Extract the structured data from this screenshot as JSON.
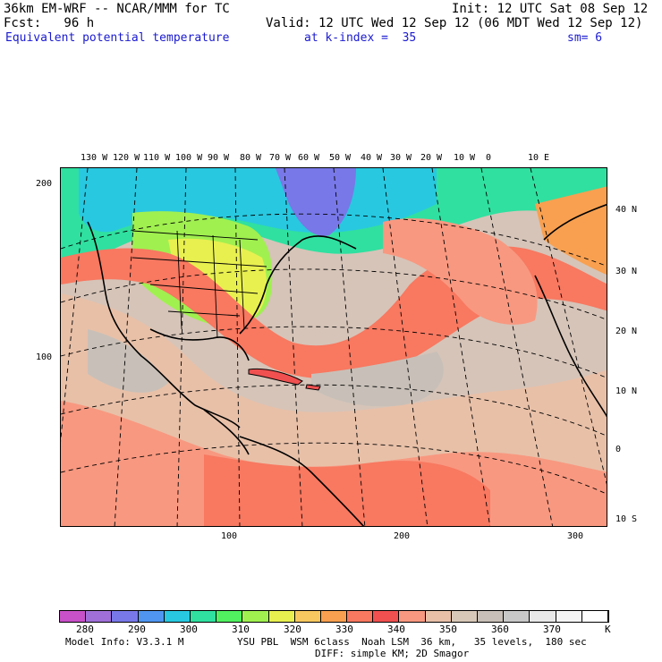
{
  "header": {
    "model": "36km EM-WRF -- NCAR/MMM for TC",
    "init": "Init: 12 UTC Sat 08 Sep 12",
    "fcst": "Fcst:   96 h",
    "valid": "Valid: 12 UTC Wed 12 Sep 12 (06 MDT Wed 12 Sep 12)",
    "field": "Equivalent potential temperature",
    "level": "at k-index =  35",
    "smooth": "sm= 6"
  },
  "map": {
    "lon_labels": [
      "130 W",
      "120 W",
      "110 W",
      "100 W",
      "90 W",
      "80 W",
      "70 W",
      "60 W",
      "50 W",
      "40 W",
      "30 W",
      "20 W",
      "10 W",
      "0",
      "10 E"
    ],
    "lat_labels": [
      "40 N",
      "30 N",
      "20 N",
      "10 N",
      "0",
      "10 S"
    ],
    "y_grid_labels": [
      "200",
      "100"
    ],
    "x_grid_labels": [
      "100",
      "200",
      "300"
    ]
  },
  "colorbar": {
    "colors": [
      "#c850c8",
      "#a070d8",
      "#7878e8",
      "#5096f0",
      "#28c8e0",
      "#30e0a0",
      "#50f060",
      "#a0f050",
      "#e8f050",
      "#f8c860",
      "#f8a050",
      "#f87860",
      "#f05050",
      "#f89880",
      "#e8c0a8",
      "#d8c8b8",
      "#c8c0b8",
      "#c8c8c8",
      "#e8e8e8",
      "#f4f4f4",
      "#ffffff"
    ],
    "labels": [
      "280",
      "290",
      "300",
      "310",
      "320",
      "330",
      "340",
      "350",
      "360",
      "370",
      "K"
    ]
  },
  "footer": {
    "model_info": "Model Info: V3.3.1 M",
    "physics": "YSU PBL  WSM 6class  Noah LSM  36 km,   35 levels,  180 sec",
    "diffusion": "DIFF: simple KM; 2D Smagor"
  }
}
